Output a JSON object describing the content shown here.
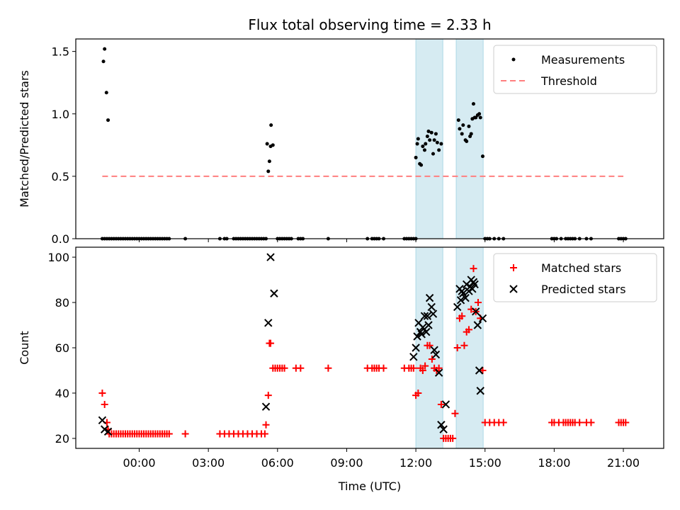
{
  "figure": {
    "title": "Flux total observing time = 2.33 h"
  },
  "colors": {
    "shade": "#add8e6",
    "threshold": "#ff7f7f",
    "matched": "#ff0000",
    "predicted": "#000000",
    "measurement": "#000000"
  },
  "chart_data": [
    {
      "type": "scatter",
      "panel": "top",
      "ylabel": "Matched/Predicted stars",
      "xlim": [
        -2.75,
        22.75
      ],
      "ylim": [
        0,
        1.6
      ],
      "yticks": [
        {
          "v": 0,
          "label": "0.0"
        },
        {
          "v": 0.5,
          "label": "0.5"
        },
        {
          "v": 1.0,
          "label": "1.0"
        },
        {
          "v": 1.5,
          "label": "1.5"
        }
      ],
      "legend": {
        "placement": "upper right",
        "entries": [
          {
            "label": "Measurements"
          },
          {
            "label": "Threshold"
          }
        ]
      },
      "shaded_intervals": [
        [
          12.0,
          13.17
        ],
        [
          13.75,
          14.92
        ]
      ],
      "threshold": {
        "value": 0.5,
        "x": [
          -1.6,
          21.0
        ]
      },
      "measurements": {
        "x": [
          -1.6,
          -1.5,
          -1.4,
          -1.3,
          -1.2,
          -1.1,
          -1.0,
          -0.9,
          -0.8,
          -0.7,
          -0.6,
          -0.5,
          -0.4,
          -0.3,
          -0.2,
          -0.1,
          0.0,
          0.1,
          0.2,
          0.3,
          0.4,
          0.5,
          0.6,
          0.7,
          0.8,
          0.9,
          1.0,
          1.1,
          1.2,
          1.3,
          2.0,
          3.5,
          3.7,
          3.8,
          4.1,
          4.2,
          4.3,
          4.4,
          4.5,
          4.6,
          4.7,
          4.8,
          4.9,
          5.0,
          5.1,
          5.2,
          5.3,
          5.4,
          5.5,
          6.0,
          6.1,
          6.2,
          6.3,
          6.4,
          6.5,
          6.6,
          6.9,
          7.0,
          7.1,
          8.2,
          9.9,
          10.1,
          10.2,
          10.3,
          10.4,
          10.6,
          11.5,
          11.6,
          11.7,
          11.8,
          11.9,
          12.0,
          15.0,
          15.1,
          15.2,
          15.4,
          15.6,
          15.8,
          17.9,
          18.0,
          18.1,
          18.3,
          18.5,
          18.6,
          18.7,
          18.8,
          18.9,
          19.1,
          19.4,
          19.6,
          20.8,
          20.9,
          21.0,
          21.1,
          -1.55,
          -1.5,
          -1.42,
          -1.35,
          5.55,
          5.6,
          5.65,
          5.7,
          5.72,
          5.8,
          12.0,
          12.06,
          12.1,
          12.17,
          12.23,
          12.3,
          12.38,
          12.42,
          12.5,
          12.55,
          12.6,
          12.68,
          12.75,
          12.8,
          12.87,
          12.93,
          13.0,
          13.1,
          13.85,
          13.9,
          14.0,
          14.05,
          14.15,
          14.2,
          14.3,
          14.35,
          14.4,
          14.45,
          14.5,
          14.55,
          14.6,
          14.68,
          14.75,
          14.8,
          14.9
        ],
        "y": [
          0,
          0,
          0,
          0,
          0,
          0,
          0,
          0,
          0,
          0,
          0,
          0,
          0,
          0,
          0,
          0,
          0,
          0,
          0,
          0,
          0,
          0,
          0,
          0,
          0,
          0,
          0,
          0,
          0,
          0,
          0,
          0,
          0,
          0,
          0,
          0,
          0,
          0,
          0,
          0,
          0,
          0,
          0,
          0,
          0,
          0,
          0,
          0,
          0,
          0,
          0,
          0,
          0,
          0,
          0,
          0,
          0,
          0,
          0,
          0,
          0,
          0,
          0,
          0,
          0,
          0,
          0,
          0,
          0,
          0,
          0,
          0,
          0,
          0,
          0,
          0,
          0,
          0,
          0,
          0,
          0,
          0,
          0,
          0,
          0,
          0,
          0,
          0,
          0,
          0,
          0,
          0,
          0,
          0,
          1.42,
          1.52,
          1.17,
          0.95,
          0.76,
          0.54,
          0.62,
          0.74,
          0.91,
          0.75,
          0.65,
          0.76,
          0.8,
          0.6,
          0.59,
          0.74,
          0.71,
          0.76,
          0.82,
          0.86,
          0.79,
          0.85,
          0.68,
          0.79,
          0.84,
          0.77,
          0.71,
          0.76,
          0.95,
          0.88,
          0.84,
          0.91,
          0.79,
          0.78,
          0.9,
          0.82,
          0.84,
          0.96,
          1.08,
          0.97,
          0.97,
          0.99,
          1.0,
          0.97,
          0.66
        ]
      },
      "xticks": [
        {
          "v": 0,
          "label": "00:00"
        },
        {
          "v": 3,
          "label": "03:00"
        },
        {
          "v": 6,
          "label": "06:00"
        },
        {
          "v": 9,
          "label": "09:00"
        },
        {
          "v": 12,
          "label": "12:00"
        },
        {
          "v": 15,
          "label": "15:00"
        },
        {
          "v": 18,
          "label": "18:00"
        },
        {
          "v": 21,
          "label": "21:00"
        }
      ]
    },
    {
      "type": "scatter",
      "panel": "bottom",
      "xlabel": "Time (UTC)",
      "ylabel": "Count",
      "xlim": [
        -2.75,
        22.75
      ],
      "ylim": [
        15.6,
        104.4
      ],
      "yticks": [
        {
          "v": 20,
          "label": "20"
        },
        {
          "v": 40,
          "label": "40"
        },
        {
          "v": 60,
          "label": "60"
        },
        {
          "v": 80,
          "label": "80"
        },
        {
          "v": 100,
          "label": "100"
        }
      ],
      "xticks": [
        {
          "v": 0,
          "label": "00:00"
        },
        {
          "v": 3,
          "label": "03:00"
        },
        {
          "v": 6,
          "label": "06:00"
        },
        {
          "v": 9,
          "label": "09:00"
        },
        {
          "v": 12,
          "label": "12:00"
        },
        {
          "v": 15,
          "label": "15:00"
        },
        {
          "v": 18,
          "label": "18:00"
        },
        {
          "v": 21,
          "label": "21:00"
        }
      ],
      "legend": {
        "placement": "upper right",
        "entries": [
          {
            "label": "Matched stars"
          },
          {
            "label": "Predicted stars"
          }
        ]
      },
      "shaded_intervals": [
        [
          12.0,
          13.17
        ],
        [
          13.75,
          14.92
        ]
      ],
      "series": [
        {
          "name": "Matched stars",
          "marker": "plus",
          "x": [
            -1.6,
            -1.5,
            -1.4,
            -1.35,
            -1.3,
            -1.2,
            -1.1,
            -1.0,
            -0.9,
            -0.8,
            -0.7,
            -0.6,
            -0.5,
            -0.4,
            -0.3,
            -0.2,
            -0.1,
            0.0,
            0.1,
            0.2,
            0.3,
            0.4,
            0.5,
            0.6,
            0.7,
            0.8,
            0.9,
            1.0,
            1.1,
            1.2,
            1.3,
            2.0,
            3.5,
            3.7,
            3.9,
            4.1,
            4.3,
            4.5,
            4.7,
            4.9,
            5.1,
            5.3,
            5.45,
            5.5,
            5.6,
            5.65,
            5.7,
            5.8,
            5.9,
            6.0,
            6.1,
            6.2,
            6.3,
            6.8,
            7.0,
            8.2,
            9.9,
            10.1,
            10.2,
            10.3,
            10.4,
            10.6,
            11.5,
            11.7,
            11.8,
            11.9,
            12.0,
            12.1,
            12.2,
            12.3,
            12.4,
            12.5,
            12.6,
            12.7,
            12.8,
            12.9,
            13.0,
            13.1,
            13.2,
            13.3,
            13.4,
            13.5,
            13.6,
            13.7,
            13.8,
            13.9,
            14.0,
            14.1,
            14.2,
            14.3,
            14.4,
            14.5,
            14.6,
            14.7,
            14.8,
            14.9,
            15.0,
            15.2,
            15.4,
            15.6,
            15.8,
            17.9,
            18.0,
            18.2,
            18.4,
            18.5,
            18.6,
            18.7,
            18.8,
            18.9,
            19.1,
            19.4,
            19.6,
            20.8,
            20.9,
            21.0,
            21.1
          ],
          "y": [
            40,
            35,
            27,
            24,
            22,
            22,
            22,
            22,
            22,
            22,
            22,
            22,
            22,
            22,
            22,
            22,
            22,
            22,
            22,
            22,
            22,
            22,
            22,
            22,
            22,
            22,
            22,
            22,
            22,
            22,
            22,
            22,
            22,
            22,
            22,
            22,
            22,
            22,
            22,
            22,
            22,
            22,
            22,
            26,
            39,
            62,
            62,
            51,
            51,
            51,
            51,
            51,
            51,
            51,
            51,
            51,
            51,
            51,
            51,
            51,
            51,
            51,
            51,
            51,
            51,
            51,
            39,
            40,
            51,
            50,
            52,
            61,
            61,
            55,
            51,
            50,
            51,
            35,
            20,
            20,
            20,
            20,
            20,
            31,
            60,
            73,
            74,
            61,
            67,
            68,
            77,
            95,
            76,
            80,
            73,
            50,
            27,
            27,
            27,
            27,
            27,
            27,
            27,
            27,
            27,
            27,
            27,
            27,
            27,
            27,
            27,
            27,
            27,
            27,
            27,
            27,
            27
          ]
        },
        {
          "name": "Predicted stars",
          "marker": "x",
          "x": [
            -1.6,
            -1.5,
            -1.35,
            5.5,
            5.6,
            5.7,
            5.85,
            11.9,
            12.0,
            12.06,
            12.12,
            12.2,
            12.25,
            12.3,
            12.38,
            12.45,
            12.5,
            12.55,
            12.6,
            12.68,
            12.75,
            12.8,
            12.87,
            13.0,
            13.1,
            13.2,
            13.3,
            13.8,
            13.9,
            13.95,
            14.0,
            14.05,
            14.15,
            14.2,
            14.3,
            14.35,
            14.4,
            14.45,
            14.5,
            14.55,
            14.6,
            14.68,
            14.75,
            14.8,
            14.9
          ],
          "y": [
            28,
            24,
            23,
            34,
            71,
            100,
            84,
            56,
            60,
            65,
            71,
            67,
            66,
            69,
            74,
            67,
            74,
            70,
            82,
            78,
            75,
            59,
            57,
            49,
            26,
            24,
            35,
            78,
            86,
            81,
            85,
            84,
            82,
            88,
            85,
            87,
            90,
            86,
            89,
            88,
            76,
            70,
            50,
            41,
            73
          ]
        }
      ]
    }
  ]
}
